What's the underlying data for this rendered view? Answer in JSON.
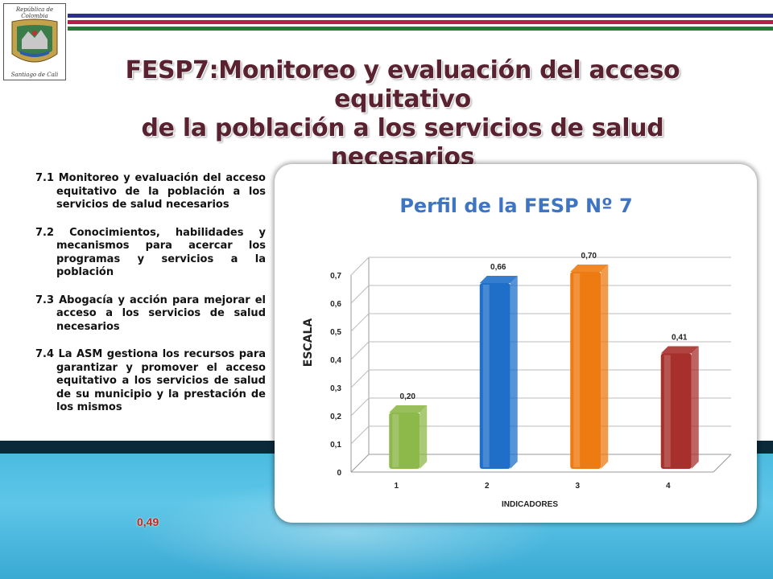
{
  "logo": {
    "text_top": "República de Colombia",
    "text_bottom": "Santiago de Cali"
  },
  "title": {
    "line1": "FESP7:Monitoreo y evaluación del acceso equitativo",
    "line2": "de la población a los servicios de salud necesarios"
  },
  "items": [
    {
      "text": "7.1 Monitoreo y evaluación del acceso equitativo de la población a los servicios de salud necesarios"
    },
    {
      "text": "7.2 Conocimientos, habilidades y mecanismos para acercar los programas y servicios a la población"
    },
    {
      "text": "7.3 Abogacía y acción para mejorar el acceso a los servicios de salud necesarios"
    },
    {
      "text": "7.4 La ASM gestiona los recursos para garantizar y promover el acceso equitativo a los servicios de salud de su municipio y la prestación de los mismos"
    }
  ],
  "score": "0,49",
  "colors": {
    "title": "#5a2230",
    "stripe_blue": "#2b2f8f",
    "stripe_red": "#b3204a",
    "stripe_green": "#1f7a3a",
    "bar1": "#8db84a",
    "bar2": "#1f6fc9",
    "bar3": "#ee7a12",
    "bar4": "#a8302c"
  },
  "chart_data": {
    "type": "bar",
    "title": "Perfil de la FESP Nº 7",
    "xlabel": "INDICADORES",
    "ylabel": "ESCALA",
    "categories": [
      "1",
      "2",
      "3",
      "4"
    ],
    "values": [
      0.2,
      0.66,
      0.7,
      0.41
    ],
    "value_labels": [
      "0,20",
      "0,66",
      "0,70",
      "0,41"
    ],
    "ylim": [
      0,
      0.7
    ],
    "yticks": [
      0,
      0.1,
      0.2,
      0.3,
      0.4,
      0.5,
      0.6,
      0.7
    ],
    "ytick_labels": [
      "0",
      "0,1",
      "0,2",
      "0,3",
      "0,4",
      "0,5",
      "0,6",
      "0,7"
    ],
    "grid": true,
    "legend": "none"
  }
}
